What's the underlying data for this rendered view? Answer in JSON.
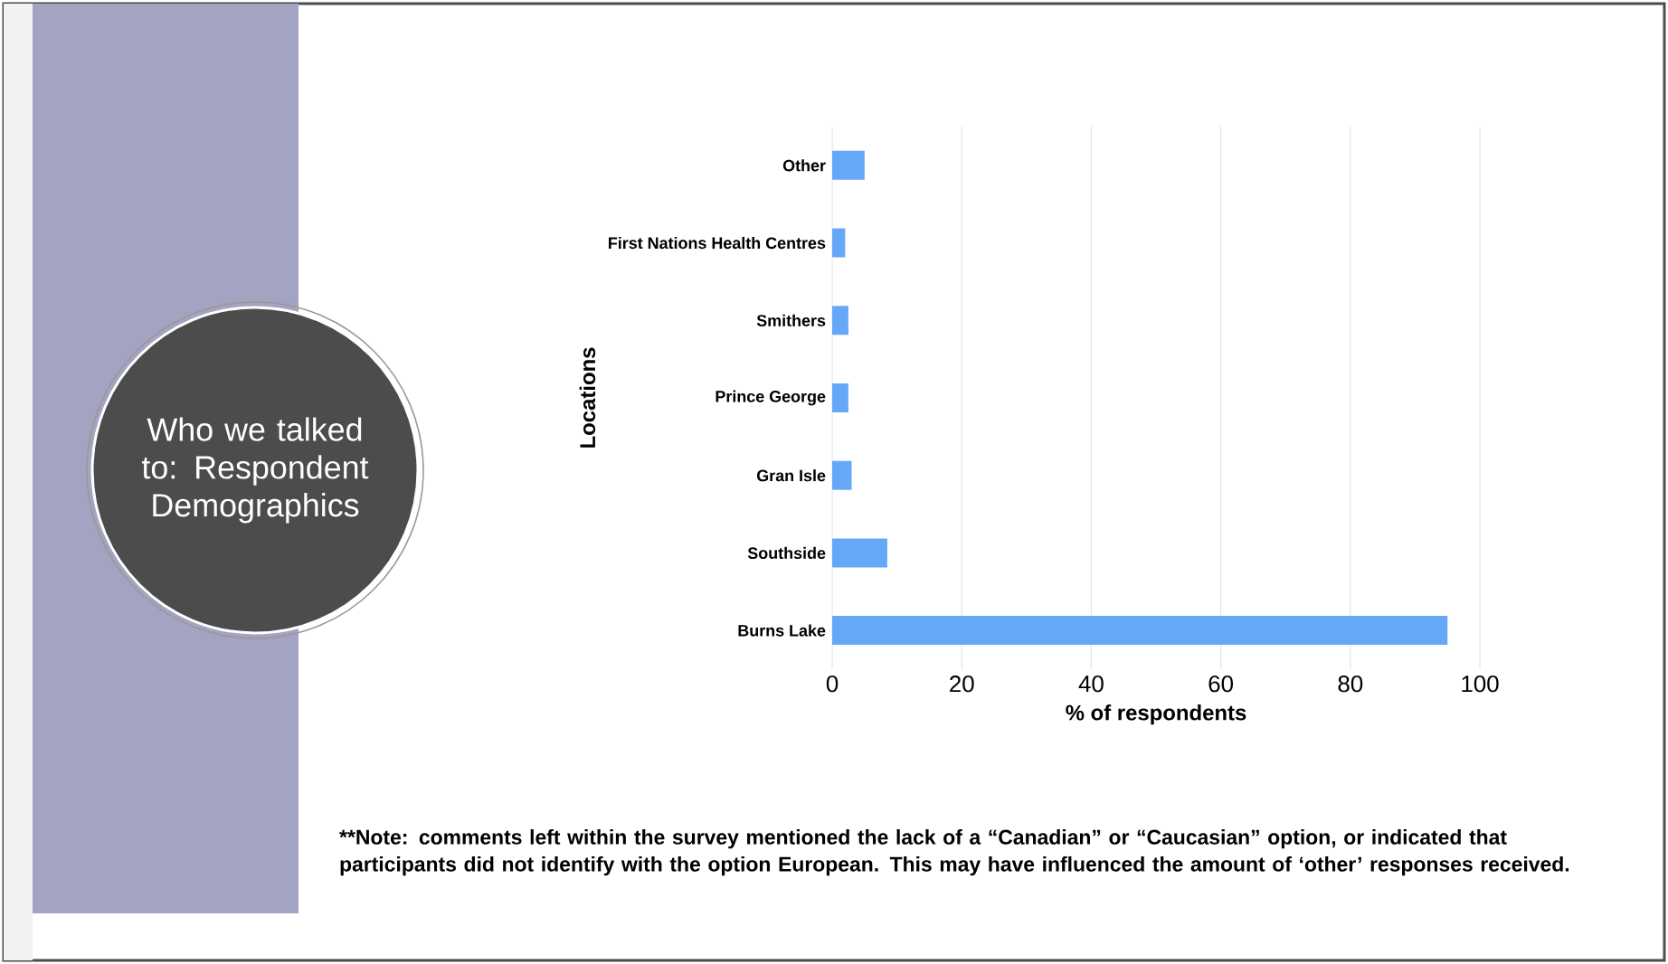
{
  "chart_data": {
    "type": "bar",
    "orientation": "horizontal",
    "title": "Who we talked to: Respondent Demographics",
    "ylabel": "Locations",
    "xlabel": "% of respondents",
    "categories": [
      "Other",
      "First Nations Health Centres",
      "Smithers",
      "Prince George",
      "Gran Isle",
      "Southside",
      "Burns Lake"
    ],
    "values": [
      5,
      2,
      2.5,
      2.5,
      3,
      8.5,
      95
    ],
    "color": "#66a8f8",
    "xlim": [
      0,
      100
    ],
    "xticks": [
      0,
      20,
      40,
      60,
      80,
      100
    ],
    "grid": "x",
    "annotations": [
      "**Note: comments left within the survey mentioned the lack of a “Canadian” or “Caucasian” option, or indicated that participants did not identify with the option European. This may have influenced the amount of ‘other’ responses received."
    ]
  }
}
